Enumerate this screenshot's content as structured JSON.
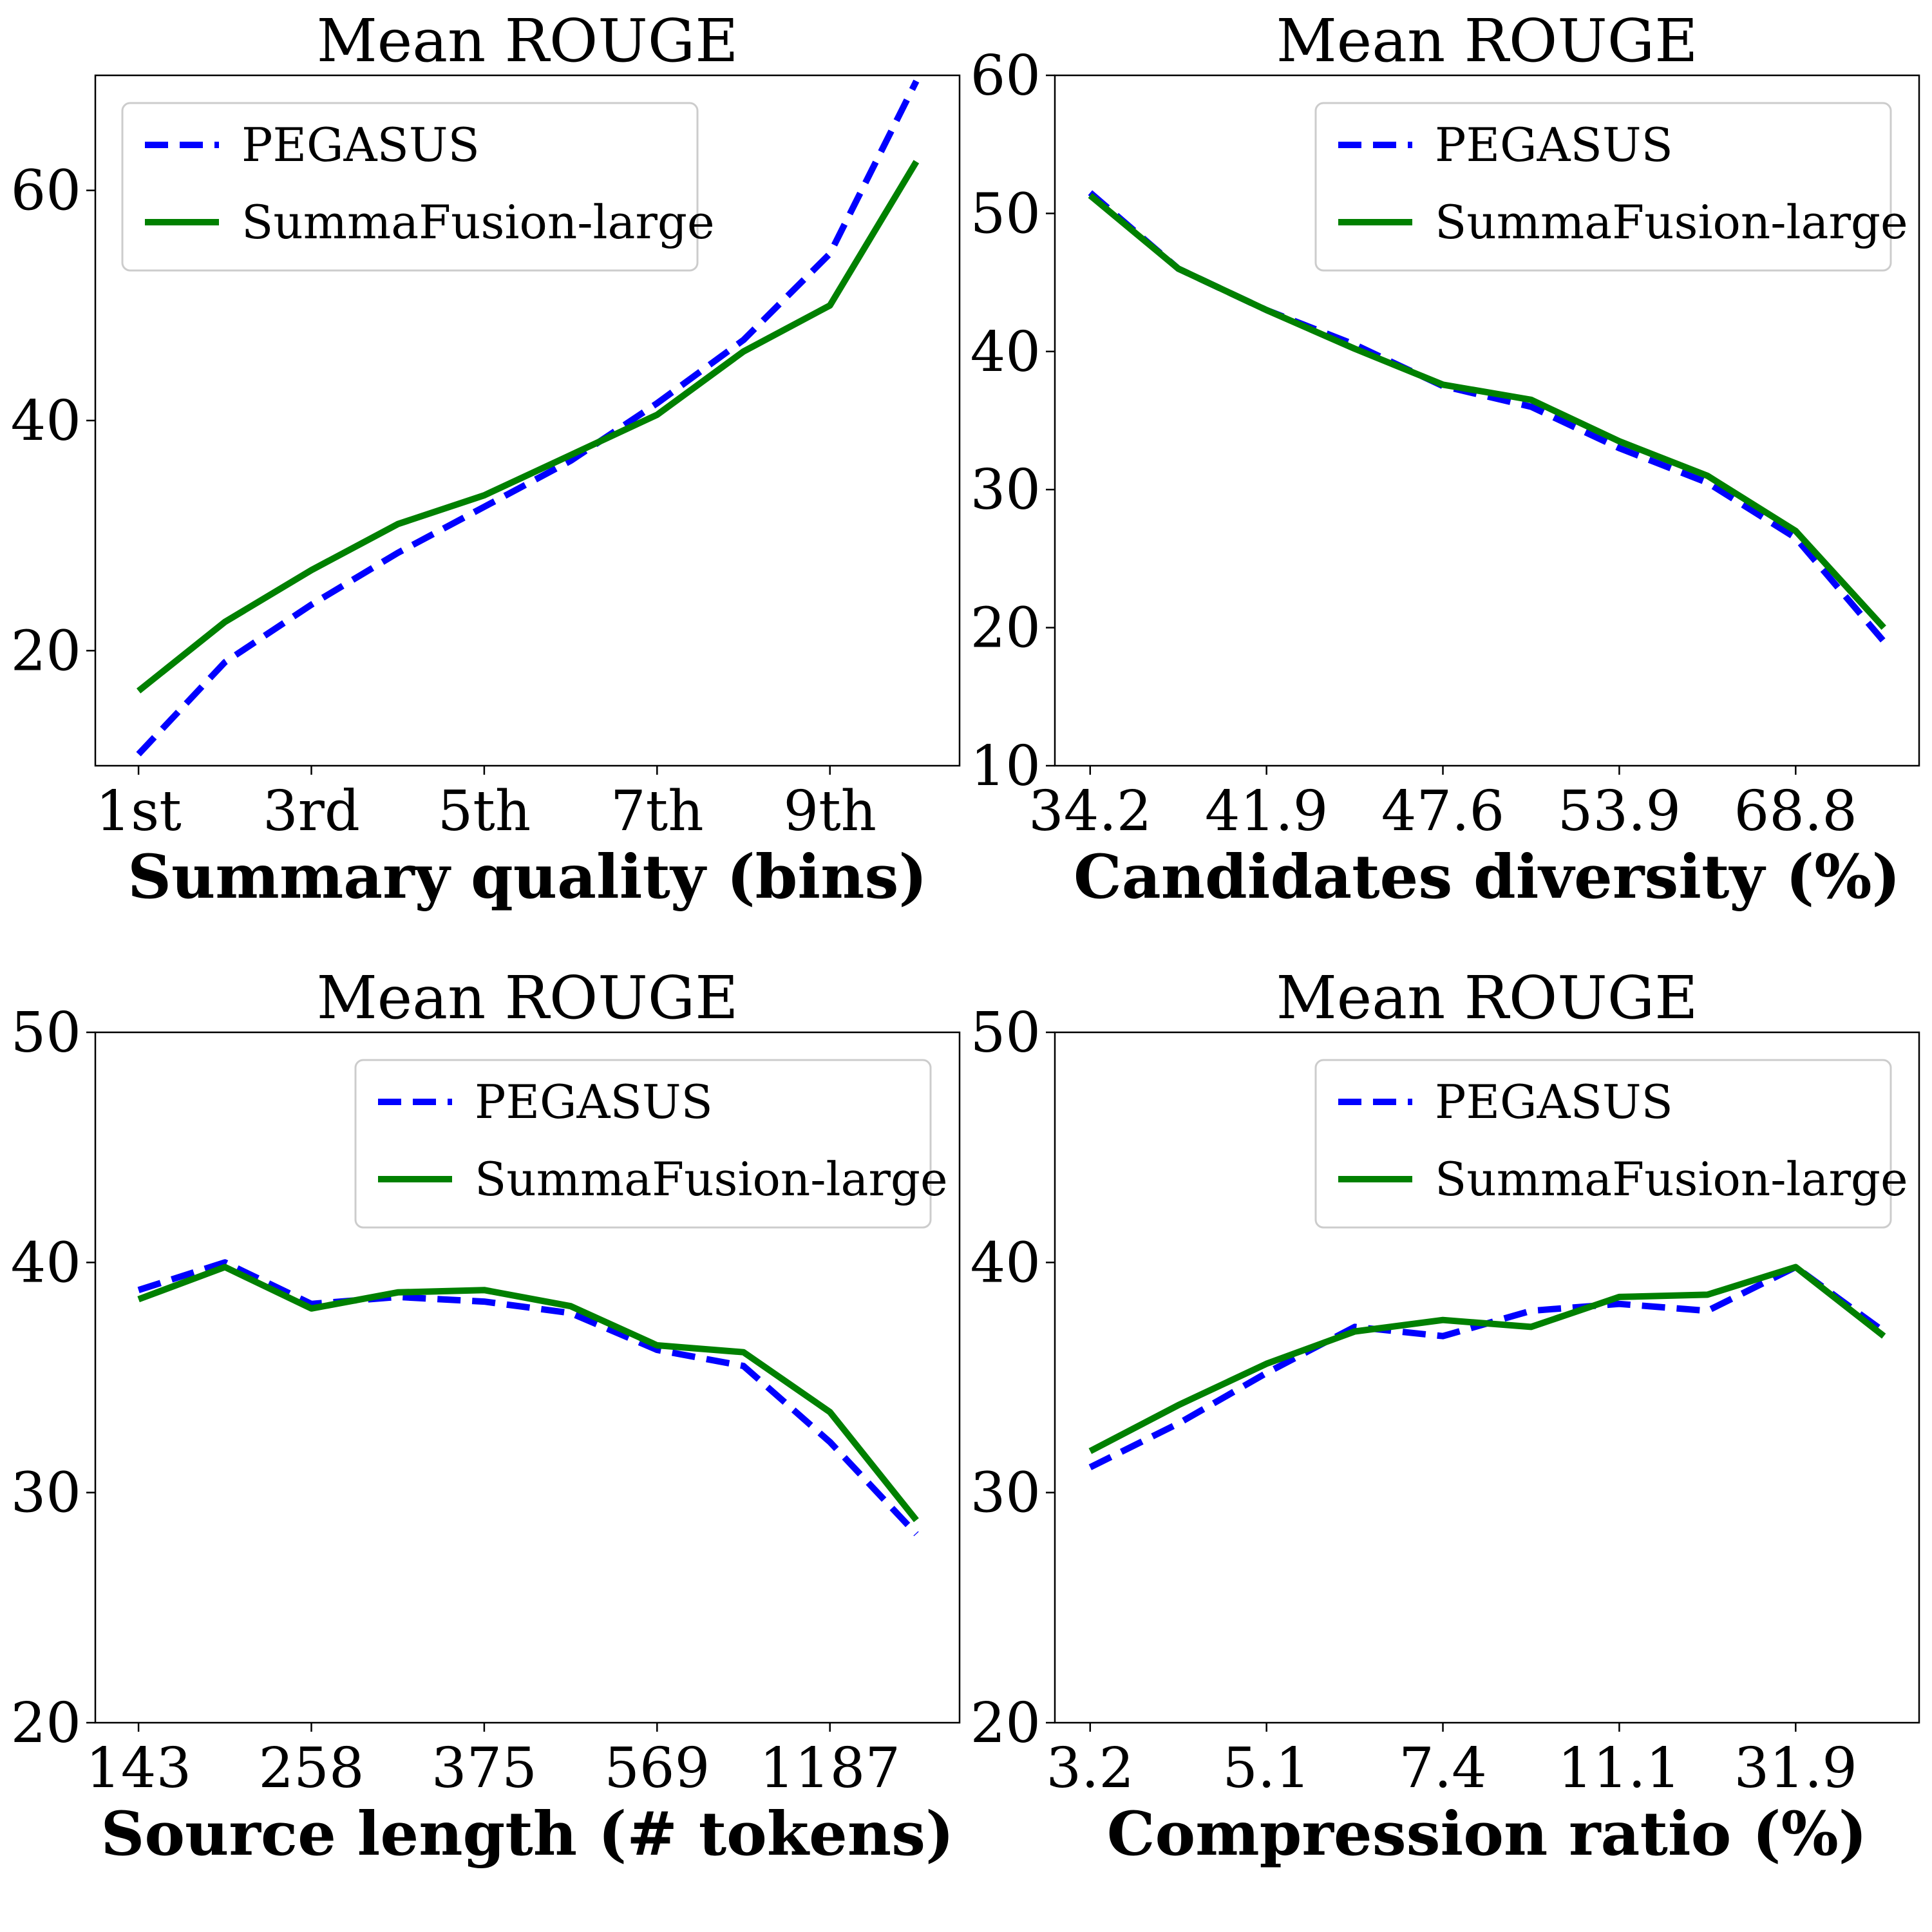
{
  "colors": {
    "PEGASUS": "#0000ff",
    "SummaFusion-large": "#008000"
  },
  "chart_data": [
    {
      "type": "line",
      "title": "Mean ROUGE",
      "xlabel": "Summary quality (bins)",
      "ylabel": "",
      "x": [
        1,
        2,
        3,
        4,
        5,
        6,
        7,
        8,
        9,
        10
      ],
      "xlim": [
        0.5,
        10.5
      ],
      "ylim": [
        10,
        70
      ],
      "xticks": [
        1,
        3,
        5,
        7,
        9
      ],
      "xtick_labels": [
        "1st",
        "3rd",
        "5th",
        "7th",
        "9th"
      ],
      "yticks": [
        20,
        40,
        60
      ],
      "ytick_labels": [
        "20",
        "40",
        "60"
      ],
      "legend_position": "top-left",
      "grid": false,
      "series": [
        {
          "name": "PEGASUS",
          "style": "dashed",
          "values": [
            11.0,
            19.0,
            24.0,
            28.5,
            32.5,
            36.5,
            41.5,
            47.0,
            54.5,
            69.5
          ]
        },
        {
          "name": "SummaFusion-large",
          "style": "solid",
          "values": [
            16.5,
            22.5,
            27.0,
            31.0,
            33.5,
            37.0,
            40.5,
            46.0,
            50.0,
            62.5
          ]
        }
      ]
    },
    {
      "type": "line",
      "title": "Mean ROUGE",
      "xlabel": "Candidates diversity (%)",
      "ylabel": "",
      "x": [
        1,
        2,
        3,
        4,
        5,
        6,
        7,
        8,
        9,
        10
      ],
      "xlim": [
        0.6,
        10.4
      ],
      "ylim": [
        10,
        60
      ],
      "xticks": [
        1,
        3,
        5,
        7,
        9
      ],
      "xtick_labels": [
        "34.2",
        "41.9",
        "47.6",
        "53.9",
        "68.8"
      ],
      "yticks": [
        10,
        20,
        30,
        40,
        50,
        60
      ],
      "ytick_labels": [
        "10",
        "20",
        "30",
        "40",
        "50",
        "60"
      ],
      "legend_position": "top-right",
      "grid": false,
      "series": [
        {
          "name": "PEGASUS",
          "style": "dashed",
          "values": [
            51.5,
            46.0,
            43.0,
            40.5,
            37.5,
            36.0,
            33.0,
            30.5,
            26.5,
            19.0
          ]
        },
        {
          "name": "SummaFusion-large",
          "style": "solid",
          "values": [
            51.3,
            46.0,
            43.0,
            40.2,
            37.6,
            36.5,
            33.5,
            31.0,
            27.0,
            20.0
          ]
        }
      ]
    },
    {
      "type": "line",
      "title": "Mean ROUGE",
      "xlabel": "Source length (# tokens)",
      "ylabel": "",
      "x": [
        1,
        2,
        3,
        4,
        5,
        6,
        7,
        8,
        9,
        10
      ],
      "xlim": [
        0.5,
        10.5
      ],
      "ylim": [
        20,
        50
      ],
      "xticks": [
        1,
        3,
        5,
        7,
        9
      ],
      "xtick_labels": [
        "143",
        "258",
        "375",
        "569",
        "1187"
      ],
      "yticks": [
        20,
        30,
        40,
        50
      ],
      "ytick_labels": [
        "20",
        "30",
        "40",
        "50"
      ],
      "legend_position": "top-right",
      "grid": false,
      "series": [
        {
          "name": "PEGASUS",
          "style": "dashed",
          "values": [
            38.8,
            40.0,
            38.2,
            38.5,
            38.3,
            37.8,
            36.2,
            35.5,
            32.2,
            28.2
          ]
        },
        {
          "name": "SummaFusion-large",
          "style": "solid",
          "values": [
            38.4,
            39.8,
            38.0,
            38.7,
            38.8,
            38.1,
            36.4,
            36.1,
            33.5,
            28.8
          ]
        }
      ]
    },
    {
      "type": "line",
      "title": "Mean ROUGE",
      "xlabel": "Compression ratio (%)",
      "ylabel": "",
      "x": [
        1,
        2,
        3,
        4,
        5,
        6,
        7,
        8,
        9,
        10
      ],
      "xlim": [
        0.6,
        10.4
      ],
      "ylim": [
        20,
        50
      ],
      "xticks": [
        1,
        3,
        5,
        7,
        9
      ],
      "xtick_labels": [
        "3.2",
        "5.1",
        "7.4",
        "11.1",
        "31.9"
      ],
      "yticks": [
        20,
        30,
        40,
        50
      ],
      "ytick_labels": [
        "20",
        "30",
        "40",
        "50"
      ],
      "legend_position": "top-right",
      "grid": false,
      "series": [
        {
          "name": "PEGASUS",
          "style": "dashed",
          "values": [
            31.1,
            33.0,
            35.2,
            37.2,
            36.8,
            37.9,
            38.2,
            37.9,
            39.8,
            37.0
          ]
        },
        {
          "name": "SummaFusion-large",
          "style": "solid",
          "values": [
            31.8,
            33.8,
            35.6,
            37.0,
            37.5,
            37.2,
            38.5,
            38.6,
            39.8,
            36.8
          ]
        }
      ]
    }
  ]
}
